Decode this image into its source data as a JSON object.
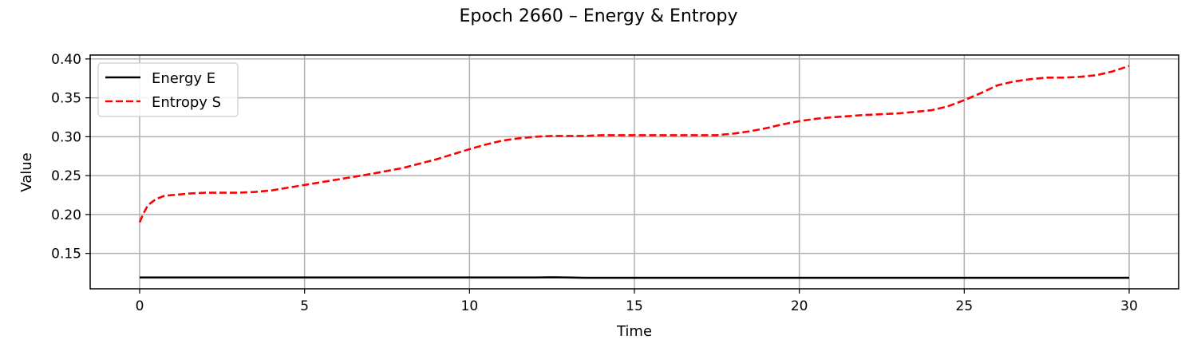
{
  "chart_data": {
    "type": "line",
    "title": "Epoch 2660 – Energy & Entropy",
    "xlabel": "Time",
    "ylabel": "Value",
    "xlim": [
      -1.5,
      31.5
    ],
    "ylim": [
      0.1045,
      0.405
    ],
    "xticks": [
      0,
      5,
      10,
      15,
      20,
      25,
      30
    ],
    "yticks": [
      0.15,
      0.2,
      0.25,
      0.3,
      0.35,
      0.4
    ],
    "xtick_labels": [
      "0",
      "5",
      "10",
      "15",
      "20",
      "25",
      "30"
    ],
    "ytick_labels": [
      "0.15",
      "0.20",
      "0.25",
      "0.30",
      "0.35",
      "0.40"
    ],
    "grid": true,
    "legend_position": "top-left",
    "series": [
      {
        "name": "Energy E",
        "color": "#000000",
        "style": "solid",
        "x": [
          0,
          5,
          10,
          12,
          12.5,
          13,
          13.5,
          15,
          20,
          25,
          30
        ],
        "y": [
          0.119,
          0.119,
          0.119,
          0.119,
          0.1193,
          0.119,
          0.1187,
          0.1187,
          0.1187,
          0.1187,
          0.1187
        ]
      },
      {
        "name": "Entropy S",
        "color": "#ff0000",
        "style": "dashed",
        "x": [
          0,
          0.1,
          0.25,
          0.5,
          0.75,
          1,
          1.5,
          2,
          3,
          3.5,
          4,
          5,
          6,
          7,
          8,
          9,
          10,
          10.5,
          11,
          11.5,
          12,
          12.5,
          13,
          13.5,
          14,
          15,
          16,
          17,
          17.5,
          18,
          18.5,
          19,
          19.5,
          20,
          20.5,
          21,
          22,
          23,
          24,
          24.5,
          25,
          25.5,
          26,
          26.5,
          27,
          27.5,
          28,
          28.5,
          29,
          29.5,
          30
        ],
        "y": [
          0.19,
          0.2,
          0.212,
          0.22,
          0.224,
          0.225,
          0.227,
          0.228,
          0.228,
          0.229,
          0.231,
          0.238,
          0.245,
          0.252,
          0.26,
          0.271,
          0.284,
          0.29,
          0.295,
          0.298,
          0.3,
          0.301,
          0.301,
          0.301,
          0.302,
          0.302,
          0.302,
          0.302,
          0.302,
          0.304,
          0.307,
          0.311,
          0.316,
          0.32,
          0.323,
          0.325,
          0.328,
          0.33,
          0.334,
          0.339,
          0.347,
          0.356,
          0.366,
          0.371,
          0.374,
          0.376,
          0.376,
          0.377,
          0.379,
          0.384,
          0.391
        ]
      }
    ]
  }
}
